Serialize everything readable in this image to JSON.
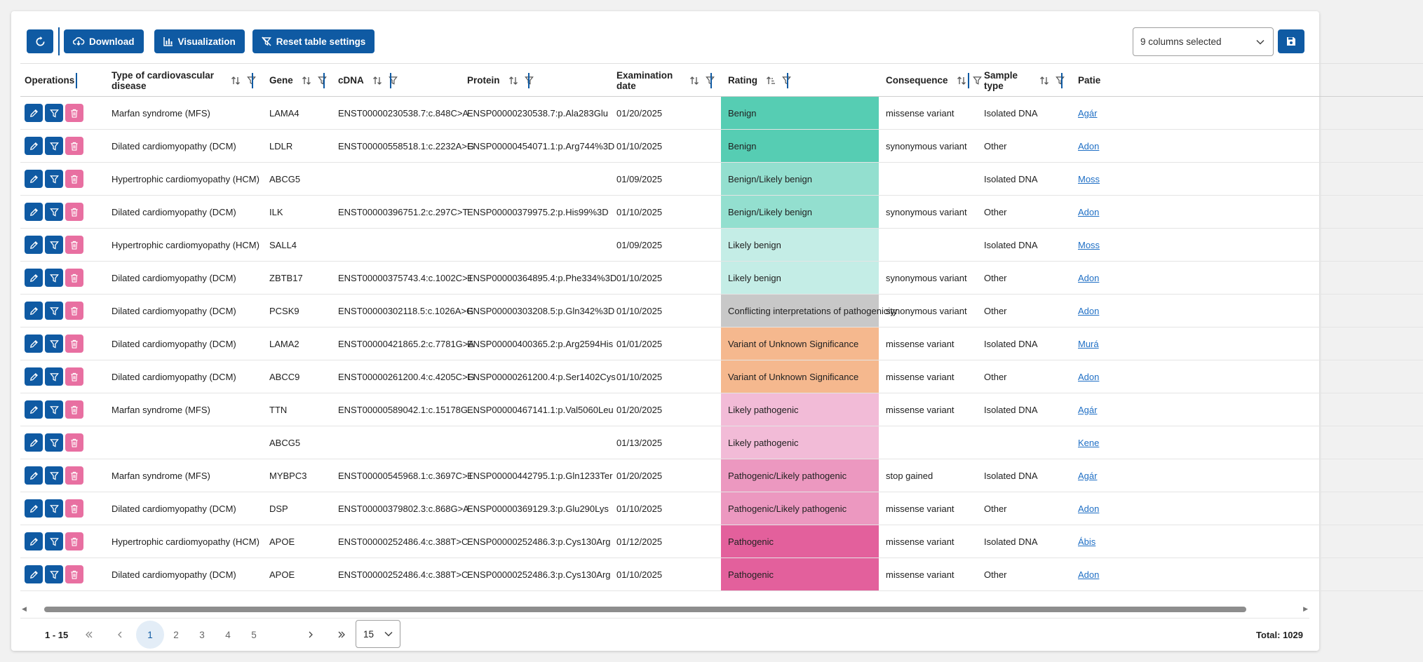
{
  "toolbar": {
    "download_label": "Download",
    "visualization_label": "Visualization",
    "reset_label": "Reset table settings",
    "columns_selected": "9 columns selected"
  },
  "columns": [
    {
      "key": "operations",
      "label": "Operations"
    },
    {
      "key": "disease",
      "label": "Type of cardiovascular disease"
    },
    {
      "key": "gene",
      "label": "Gene"
    },
    {
      "key": "cdna",
      "label": "cDNA"
    },
    {
      "key": "protein",
      "label": "Protein"
    },
    {
      "key": "date",
      "label": "Examination date"
    },
    {
      "key": "rating",
      "label": "Rating"
    },
    {
      "key": "consequence",
      "label": "Consequence"
    },
    {
      "key": "sample",
      "label": "Sample type"
    },
    {
      "key": "patient",
      "label": "Patie"
    }
  ],
  "rating_colors": {
    "Benign": "#56cdb3",
    "Benign/Likely benign": "#93dfcf",
    "Likely benign": "#c4ede6",
    "Conflicting interpretations of pathogenicity": "#c8c8c8",
    "Variant of Unknown Significance": "#f5b88e",
    "Likely pathogenic": "#f2bbd7",
    "Pathogenic/Likely pathogenic": "#ec98c0",
    "Pathogenic": "#e3609c"
  },
  "rows": [
    {
      "disease": "Marfan syndrome (MFS)",
      "gene": "LAMA4",
      "cdna": "ENST00000230538.7:c.848C>A",
      "protein": "ENSP00000230538.7:p.Ala283Glu",
      "date": "01/20/2025",
      "rating": "Benign",
      "consequence": "missense variant",
      "sample": "Isolated DNA",
      "patient": "Agár"
    },
    {
      "disease": "Dilated cardiomyopathy (DCM)",
      "gene": "LDLR",
      "cdna": "ENST00000558518.1:c.2232A>G",
      "protein": "ENSP00000454071.1:p.Arg744%3D",
      "date": "01/10/2025",
      "rating": "Benign",
      "consequence": "synonymous variant",
      "sample": "Other",
      "patient": "Adon"
    },
    {
      "disease": "Hypertrophic cardiomyopathy (HCM)",
      "gene": "ABCG5",
      "cdna": "",
      "protein": "",
      "date": "01/09/2025",
      "rating": "Benign/Likely benign",
      "consequence": "",
      "sample": "Isolated DNA",
      "patient": "Moss"
    },
    {
      "disease": "Dilated cardiomyopathy (DCM)",
      "gene": "ILK",
      "cdna": "ENST00000396751.2:c.297C>T",
      "protein": "ENSP00000379975.2:p.His99%3D",
      "date": "01/10/2025",
      "rating": "Benign/Likely benign",
      "consequence": "synonymous variant",
      "sample": "Other",
      "patient": "Adon"
    },
    {
      "disease": "Hypertrophic cardiomyopathy (HCM)",
      "gene": "SALL4",
      "cdna": "",
      "protein": "",
      "date": "01/09/2025",
      "rating": "Likely benign",
      "consequence": "",
      "sample": "Isolated DNA",
      "patient": "Moss"
    },
    {
      "disease": "Dilated cardiomyopathy (DCM)",
      "gene": "ZBTB17",
      "cdna": "ENST00000375743.4:c.1002C>T",
      "protein": "ENSP00000364895.4:p.Phe334%3D",
      "date": "01/10/2025",
      "rating": "Likely benign",
      "consequence": "synonymous variant",
      "sample": "Other",
      "patient": "Adon"
    },
    {
      "disease": "Dilated cardiomyopathy (DCM)",
      "gene": "PCSK9",
      "cdna": "ENST00000302118.5:c.1026A>G",
      "protein": "ENSP00000303208.5:p.Gln342%3D",
      "date": "01/10/2025",
      "rating": "Conflicting interpretations of pathogenicity",
      "consequence": "synonymous variant",
      "sample": "Other",
      "patient": "Adon"
    },
    {
      "disease": "Dilated cardiomyopathy (DCM)",
      "gene": "LAMA2",
      "cdna": "ENST00000421865.2:c.7781G>A",
      "protein": "ENSP00000400365.2:p.Arg2594His",
      "date": "01/01/2025",
      "rating": "Variant of Unknown Significance",
      "consequence": "missense variant",
      "sample": "Isolated DNA",
      "patient": "Murá"
    },
    {
      "disease": "Dilated cardiomyopathy (DCM)",
      "gene": "ABCC9",
      "cdna": "ENST00000261200.4:c.4205C>G",
      "protein": "ENSP00000261200.4:p.Ser1402Cys",
      "date": "01/10/2025",
      "rating": "Variant of Unknown Significance",
      "consequence": "missense variant",
      "sample": "Other",
      "patient": "Adon"
    },
    {
      "disease": "Marfan syndrome (MFS)",
      "gene": "TTN",
      "cdna": "ENST00000589042.1:c.15178G…",
      "protein": "ENSP00000467141.1:p.Val5060Leu",
      "date": "01/20/2025",
      "rating": "Likely pathogenic",
      "consequence": "missense variant",
      "sample": "Isolated DNA",
      "patient": "Agár"
    },
    {
      "disease": "",
      "gene": "ABCG5",
      "cdna": "",
      "protein": "",
      "date": "01/13/2025",
      "rating": "Likely pathogenic",
      "consequence": "",
      "sample": "",
      "patient": "Kene"
    },
    {
      "disease": "Marfan syndrome (MFS)",
      "gene": "MYBPC3",
      "cdna": "ENST00000545968.1:c.3697C>T",
      "protein": "ENSP00000442795.1:p.Gln1233Ter",
      "date": "01/20/2025",
      "rating": "Pathogenic/Likely pathogenic",
      "consequence": "stop gained",
      "sample": "Isolated DNA",
      "patient": "Agár"
    },
    {
      "disease": "Dilated cardiomyopathy (DCM)",
      "gene": "DSP",
      "cdna": "ENST00000379802.3:c.868G>A",
      "protein": "ENSP00000369129.3:p.Glu290Lys",
      "date": "01/10/2025",
      "rating": "Pathogenic/Likely pathogenic",
      "consequence": "missense variant",
      "sample": "Other",
      "patient": "Adon"
    },
    {
      "disease": "Hypertrophic cardiomyopathy (HCM)",
      "gene": "APOE",
      "cdna": "ENST00000252486.4:c.388T>C",
      "protein": "ENSP00000252486.3:p.Cys130Arg",
      "date": "01/12/2025",
      "rating": "Pathogenic",
      "consequence": "missense variant",
      "sample": "Isolated DNA",
      "patient": "Ábis"
    },
    {
      "disease": "Dilated cardiomyopathy (DCM)",
      "gene": "APOE",
      "cdna": "ENST00000252486.4:c.388T>C",
      "protein": "ENSP00000252486.3:p.Cys130Arg",
      "date": "01/10/2025",
      "rating": "Pathogenic",
      "consequence": "missense variant",
      "sample": "Other",
      "patient": "Adon"
    }
  ],
  "pagination": {
    "range": "1 - 15",
    "pages": [
      "1",
      "2",
      "3",
      "4",
      "5"
    ],
    "current": "1",
    "per_page": "15",
    "total": "Total: 1029"
  }
}
